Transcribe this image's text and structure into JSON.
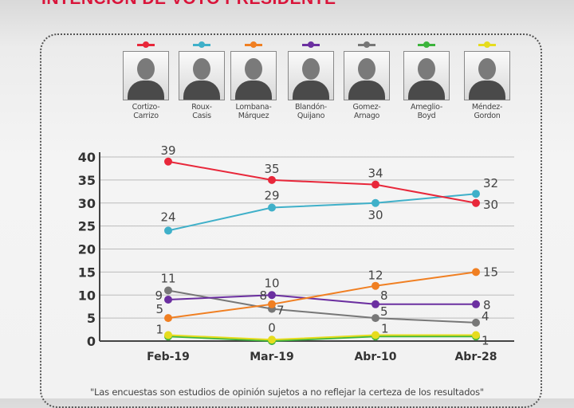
{
  "title": "INTENCIÓN DE VOTO PRESIDENTE",
  "candidates": [
    {
      "name": "Cortizo-Carrizo",
      "line1": "Cortizo-",
      "line2": "Carrizo",
      "color": "#e8273a"
    },
    {
      "name": "Roux-Casis",
      "line1": "Roux-",
      "line2": "Casis",
      "color": "#3fb0c9"
    },
    {
      "name": "Lombana-Márquez",
      "line1": "Lombana-",
      "line2": "Márquez",
      "color": "#f07f22"
    },
    {
      "name": "Blandón-Quijano",
      "line1": "Blandón-",
      "line2": "Quijano",
      "color": "#6b2fa0"
    },
    {
      "name": "Gomez-Arnago",
      "line1": "Gomez-",
      "line2": "Arnago",
      "color": "#777777"
    },
    {
      "name": "Ameglio-Boyd",
      "line1": "Ameglio-",
      "line2": "Boyd",
      "color": "#3cb43c"
    },
    {
      "name": "Méndez-Gordon",
      "line1": "Méndez-",
      "line2": "Gordon",
      "color": "#e6dc1e"
    }
  ],
  "chart_data": {
    "type": "line",
    "categories": [
      "Feb-19",
      "Mar-19",
      "Abr-10",
      "Abr-28"
    ],
    "ylim": [
      0,
      40
    ],
    "yticks": [
      "0",
      "5",
      "10",
      "15",
      "20",
      "25",
      "30",
      "35",
      "40"
    ],
    "grid": true,
    "series": [
      {
        "name": "Cortizo-Carrizo",
        "color": "#e8273a",
        "values": [
          39,
          35,
          34,
          30
        ]
      },
      {
        "name": "Roux-Casis",
        "color": "#3fb0c9",
        "values": [
          24,
          29,
          30,
          32
        ]
      },
      {
        "name": "Lombana-Márquez",
        "color": "#f07f22",
        "values": [
          5,
          8,
          12,
          15
        ]
      },
      {
        "name": "Blandón-Quijano",
        "color": "#6b2fa0",
        "values": [
          9,
          10,
          8,
          8
        ]
      },
      {
        "name": "Gomez-Arnago",
        "color": "#777777",
        "values": [
          11,
          7,
          5,
          4
        ]
      },
      {
        "name": "Ameglio-Boyd",
        "color": "#3cb43c",
        "values": [
          1,
          0,
          1,
          1
        ]
      },
      {
        "name": "Méndez-Gordon",
        "color": "#e6dc1e",
        "values": [
          1,
          0,
          1,
          1
        ]
      }
    ]
  },
  "footnote": "\"Las encuestas son estudios de opinión sujetos a no reflejar la certeza de los resultados\""
}
